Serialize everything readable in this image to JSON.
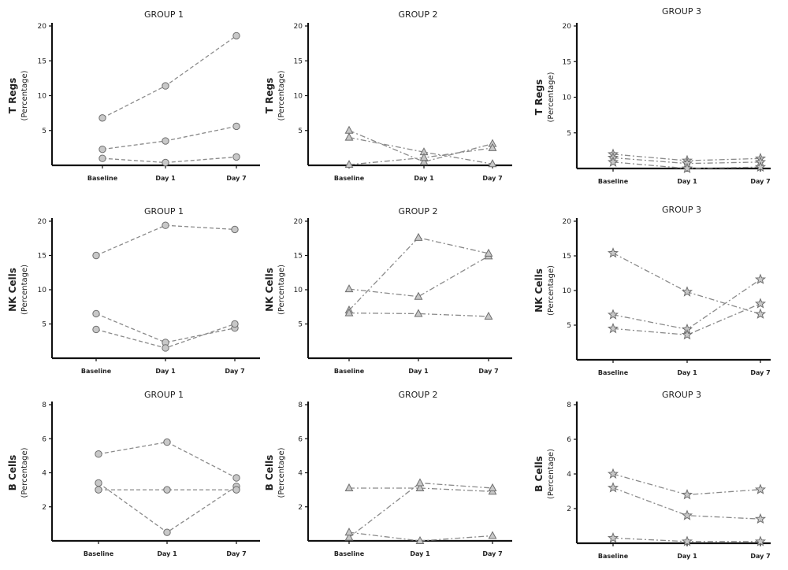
{
  "chart_data": [
    {
      "type": "line",
      "title": "GROUP 1",
      "ylabel": "T Regs",
      "ylabel_sub": "(Percentage)",
      "categories": [
        "Baseline",
        "Day 1",
        "Day 7"
      ],
      "ylim": [
        0,
        20
      ],
      "yticks": [
        5,
        10,
        15,
        20
      ],
      "marker": "circle",
      "line_style": "dashed",
      "series": [
        {
          "values": [
            6.8,
            11.4,
            18.6
          ]
        },
        {
          "values": [
            2.3,
            3.5,
            5.6
          ]
        },
        {
          "values": [
            1.0,
            0.4,
            1.2
          ]
        }
      ]
    },
    {
      "type": "line",
      "title": "GROUP 2",
      "ylabel": "T Regs",
      "ylabel_sub": "(Percentage)",
      "categories": [
        "Baseline",
        "Day 1",
        "Day 7"
      ],
      "ylim": [
        0,
        20
      ],
      "yticks": [
        5,
        10,
        15,
        20
      ],
      "marker": "triangle",
      "line_style": "dash-dot",
      "series": [
        {
          "values": [
            5.0,
            0.5,
            3.1
          ]
        },
        {
          "values": [
            4.0,
            1.9,
            0.2
          ]
        },
        {
          "values": [
            0.1,
            1.1,
            2.5
          ]
        }
      ]
    },
    {
      "type": "line",
      "title": "GROUP 3",
      "ylabel": "T Regs",
      "ylabel_sub": "(Percentage)",
      "categories": [
        "Baseline",
        "Day 1",
        "Day 7"
      ],
      "ylim": [
        0,
        20
      ],
      "yticks": [
        5,
        10,
        15,
        20
      ],
      "marker": "star",
      "line_style": "dash-dot",
      "series": [
        {
          "values": [
            2.0,
            1.1,
            1.4
          ]
        },
        {
          "values": [
            1.5,
            0.7,
            0.9
          ]
        },
        {
          "values": [
            0.9,
            0.0,
            0.2
          ]
        }
      ]
    },
    {
      "type": "line",
      "title": "GROUP 1",
      "ylabel": "NK Cells",
      "ylabel_sub": "(Percentage)",
      "categories": [
        "Baseline",
        "Day 1",
        "Day 7"
      ],
      "ylim": [
        0,
        20
      ],
      "yticks": [
        5,
        10,
        15,
        20
      ],
      "marker": "circle",
      "line_style": "dashed",
      "series": [
        {
          "values": [
            15.0,
            19.4,
            18.8
          ]
        },
        {
          "values": [
            6.5,
            2.3,
            4.4
          ]
        },
        {
          "values": [
            4.2,
            1.5,
            5.0
          ]
        }
      ]
    },
    {
      "type": "line",
      "title": "GROUP 2",
      "ylabel": "NK Cells",
      "ylabel_sub": "(Percentage)",
      "categories": [
        "Baseline",
        "Day 1",
        "Day 7"
      ],
      "ylim": [
        0,
        20
      ],
      "yticks": [
        5,
        10,
        15,
        20
      ],
      "marker": "triangle",
      "line_style": "dash-dot",
      "series": [
        {
          "values": [
            10.1,
            9.0,
            14.9
          ]
        },
        {
          "values": [
            7.0,
            17.6,
            15.3
          ]
        },
        {
          "values": [
            6.6,
            6.5,
            6.1
          ]
        }
      ]
    },
    {
      "type": "line",
      "title": "GROUP 3",
      "ylabel": "NK Cells",
      "ylabel_sub": "(Percentage)",
      "categories": [
        "Baseline",
        "Day 1",
        "Day 7"
      ],
      "ylim": [
        0,
        20
      ],
      "yticks": [
        5,
        10,
        15,
        20
      ],
      "marker": "star",
      "line_style": "dash-dot",
      "series": [
        {
          "values": [
            15.4,
            9.8,
            6.6
          ]
        },
        {
          "values": [
            6.5,
            4.4,
            11.6
          ]
        },
        {
          "values": [
            4.5,
            3.6,
            8.1
          ]
        }
      ]
    },
    {
      "type": "line",
      "title": "GROUP 1",
      "ylabel": "B Cells",
      "ylabel_sub": "(Percentage)",
      "categories": [
        "Baseline",
        "Day 1",
        "Day 7"
      ],
      "ylim": [
        0,
        8
      ],
      "yticks": [
        2,
        4,
        6,
        8
      ],
      "marker": "circle",
      "line_style": "dashed",
      "series": [
        {
          "values": [
            5.1,
            5.8,
            3.7
          ]
        },
        {
          "values": [
            3.4,
            0.5,
            3.2
          ]
        },
        {
          "values": [
            3.0,
            3.0,
            3.0
          ]
        }
      ]
    },
    {
      "type": "line",
      "title": "GROUP 2",
      "ylabel": "B Cells",
      "ylabel_sub": "(Percentage)",
      "categories": [
        "Baseline",
        "Day 1",
        "Day 7"
      ],
      "ylim": [
        0,
        8
      ],
      "yticks": [
        2,
        4,
        6,
        8
      ],
      "marker": "triangle",
      "line_style": "dash-dot",
      "series": [
        {
          "values": [
            3.1,
            3.1,
            2.9
          ]
        },
        {
          "values": [
            0.2,
            3.4,
            3.1
          ]
        },
        {
          "values": [
            0.5,
            0.0,
            0.3
          ]
        }
      ]
    },
    {
      "type": "line",
      "title": "GROUP 3",
      "ylabel": "B Cells",
      "ylabel_sub": "(Percentage)",
      "categories": [
        "Baseline",
        "Day 1",
        "Day 7"
      ],
      "ylim": [
        0,
        8
      ],
      "yticks": [
        2,
        4,
        6,
        8
      ],
      "marker": "star",
      "line_style": "dash-dot",
      "series": [
        {
          "values": [
            4.0,
            2.8,
            3.1
          ]
        },
        {
          "values": [
            3.2,
            1.6,
            1.4
          ]
        },
        {
          "values": [
            0.3,
            0.1,
            0.1
          ]
        }
      ]
    }
  ],
  "colors": {
    "line": "#8a8a8a",
    "marker_fill": "#c8c8c8",
    "marker_stroke": "#6e6e6e",
    "axis": "#111111"
  }
}
